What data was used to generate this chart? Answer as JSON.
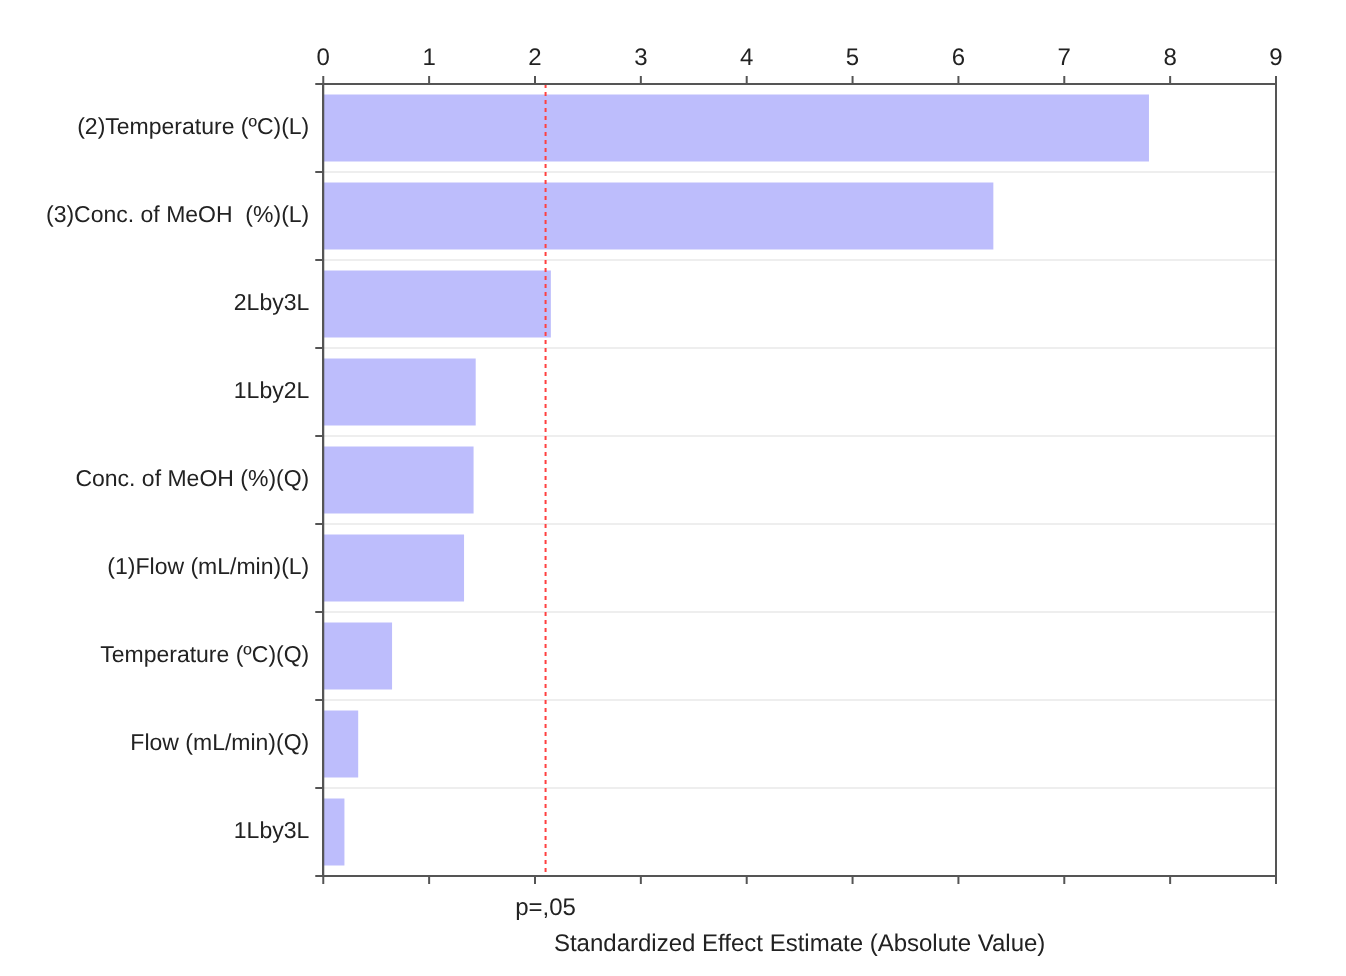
{
  "chart_data": {
    "type": "bar",
    "orientation": "horizontal",
    "xlabel": "Standardized Effect Estimate (Absolute Value)",
    "categories": [
      "(2)Temperature (ºC)(L)",
      "(3)Conc. of MeOH  (%)(L)",
      "2Lby3L",
      "1Lby2L",
      "Conc. of MeOH (%)(Q)",
      "(1)Flow (mL/min)(L)",
      "Temperature (ºC)(Q)",
      "Flow (mL/min)(Q)",
      "1Lby3L"
    ],
    "values": [
      7.8,
      6.33,
      2.15,
      1.44,
      1.42,
      1.33,
      0.65,
      0.33,
      0.2
    ],
    "color": "#bdbdfc",
    "xlim": [
      0,
      9
    ],
    "xticks": [
      0,
      1,
      2,
      3,
      4,
      5,
      6,
      7,
      8,
      9
    ],
    "ref_lines": [
      {
        "axis": "x",
        "value": 2.1,
        "label": "p=,05",
        "color": "#ff4040",
        "line_style": "dotted"
      }
    ],
    "grid": "y",
    "legend": false
  }
}
